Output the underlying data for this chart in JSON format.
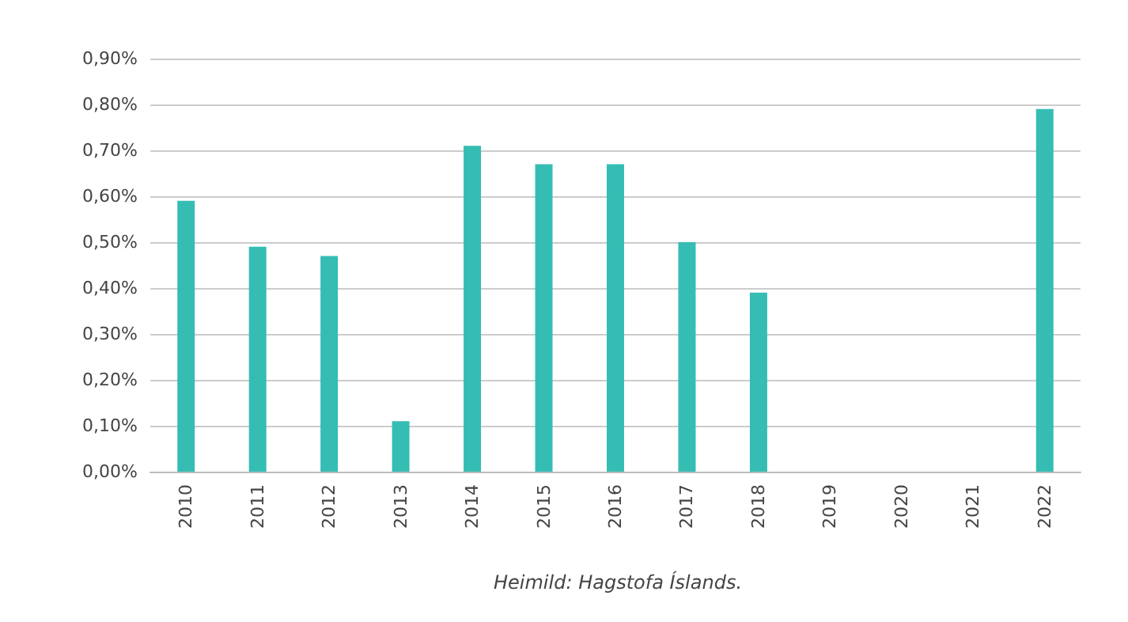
{
  "chart_data": {
    "type": "bar",
    "categories": [
      "2010",
      "2011",
      "2012",
      "2013",
      "2014",
      "2015",
      "2016",
      "2017",
      "2018",
      "2019",
      "2020",
      "2021",
      "2022"
    ],
    "values": [
      0.59,
      0.49,
      0.47,
      0.11,
      0.71,
      0.67,
      0.67,
      0.5,
      0.39,
      null,
      null,
      null,
      0.79
    ],
    "color": "#35bdb4",
    "ylim": [
      0,
      0.9
    ],
    "yticks": [
      {
        "value": 0,
        "label": "0,00%"
      },
      {
        "value": 0.1,
        "label": "0,10%"
      },
      {
        "value": 0.2,
        "label": "0,20%"
      },
      {
        "value": 0.3,
        "label": "0,30%"
      },
      {
        "value": 0.4,
        "label": "0,40%"
      },
      {
        "value": 0.5,
        "label": "0,50%"
      },
      {
        "value": 0.6,
        "label": "0,60%"
      },
      {
        "value": 0.7,
        "label": "0,70%"
      },
      {
        "value": 0.8,
        "label": "0,80%"
      },
      {
        "value": 0.9,
        "label": "0,90%"
      }
    ],
    "grid": "y",
    "annotations": [
      "Heimild: Hagstofa Íslands."
    ]
  }
}
